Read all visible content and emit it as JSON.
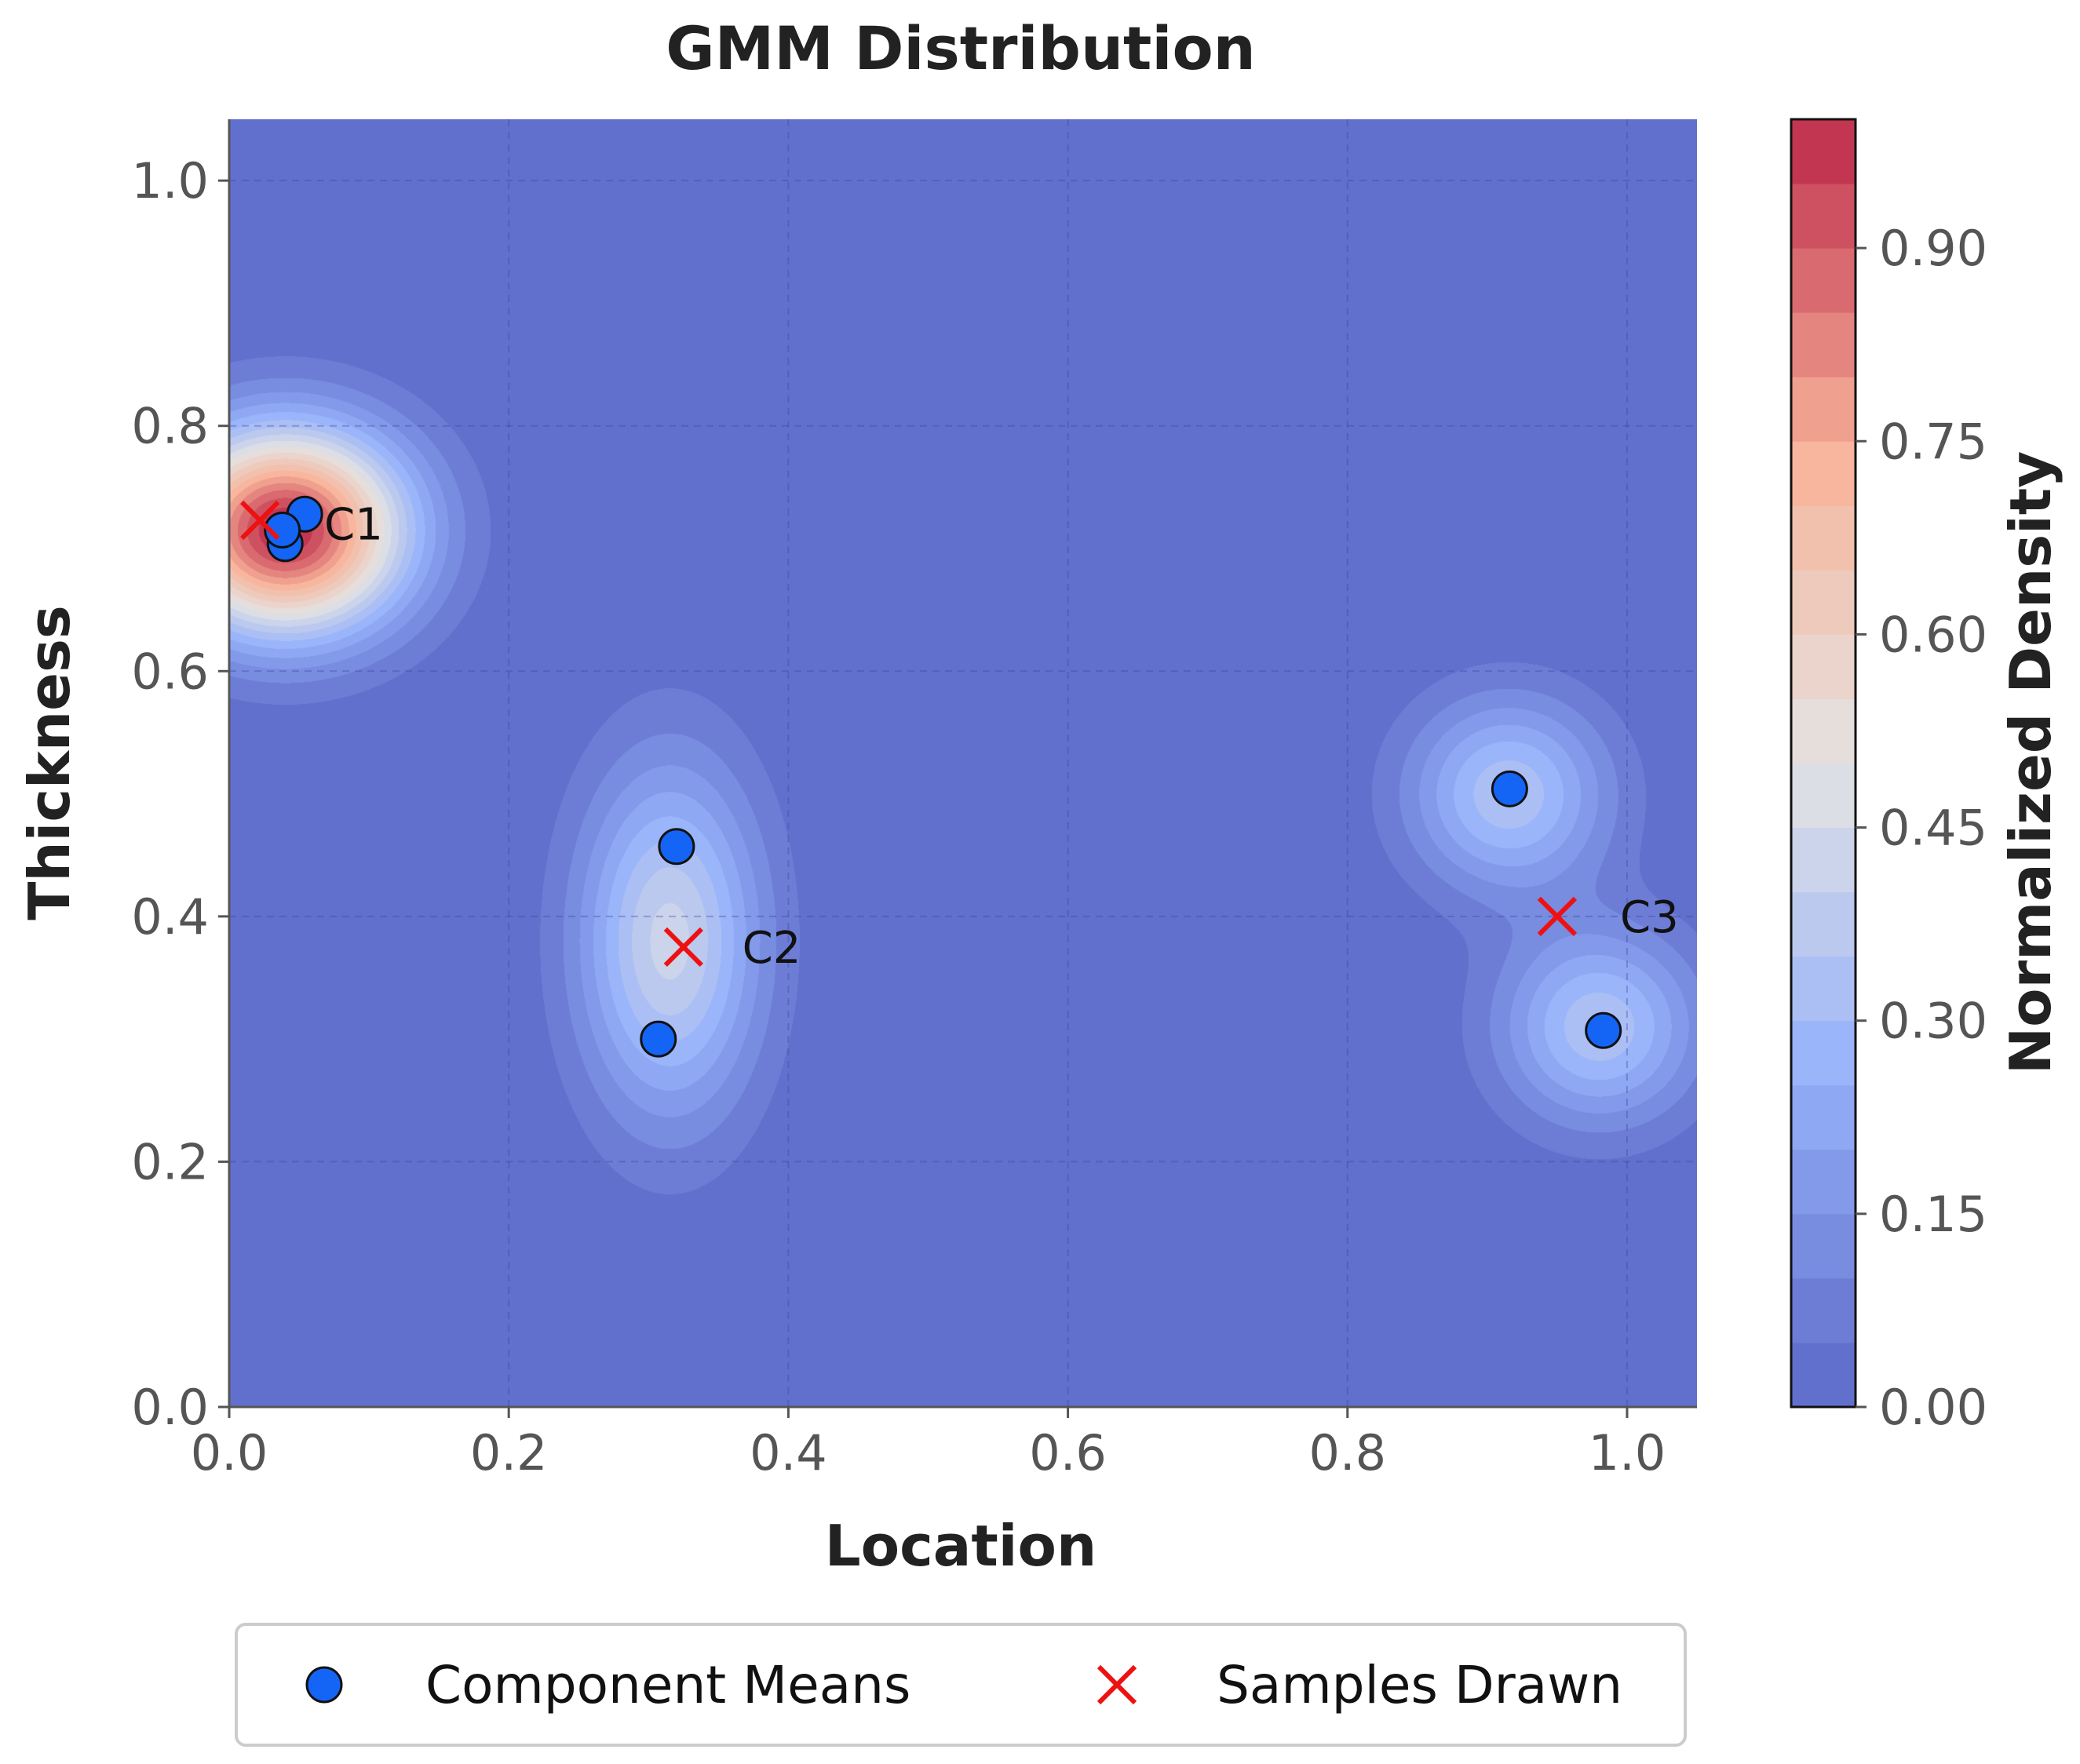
{
  "chart_data": {
    "type": "heatmap",
    "title": "GMM Distribution",
    "xlabel": "Location",
    "ylabel": "Thickness",
    "xlim": [
      0.0,
      1.05
    ],
    "ylim": [
      0.0,
      1.05
    ],
    "xticks": [
      "0.0",
      "0.2",
      "0.4",
      "0.6",
      "0.8",
      "1.0"
    ],
    "yticks": [
      "0.0",
      "0.2",
      "0.4",
      "0.6",
      "0.8",
      "1.0"
    ],
    "grid": true,
    "colorbar": {
      "label": "Normalized Density",
      "range": [
        0.0,
        1.0
      ],
      "ticks": [
        "0.00",
        "0.15",
        "0.30",
        "0.45",
        "0.60",
        "0.75",
        "0.90"
      ],
      "colormap": "coolwarm",
      "levels": 20
    },
    "component_means": [
      {
        "x": 0.04,
        "y": 0.704
      },
      {
        "x": 0.054,
        "y": 0.728
      },
      {
        "x": 0.038,
        "y": 0.715
      },
      {
        "x": 0.32,
        "y": 0.457
      },
      {
        "x": 0.307,
        "y": 0.3
      },
      {
        "x": 0.916,
        "y": 0.504
      },
      {
        "x": 0.983,
        "y": 0.307
      }
    ],
    "samples_drawn": [
      {
        "x": 0.022,
        "y": 0.723
      },
      {
        "x": 0.325,
        "y": 0.375
      },
      {
        "x": 0.95,
        "y": 0.4
      }
    ],
    "annotations": [
      {
        "text": "C1",
        "x": 0.068,
        "y": 0.72
      },
      {
        "text": "C2",
        "x": 0.367,
        "y": 0.375
      },
      {
        "text": "C3",
        "x": 0.995,
        "y": 0.4
      }
    ],
    "density_peaks": [
      {
        "x": 0.04,
        "y": 0.715,
        "peak": 1.0,
        "sx": 0.06,
        "sy": 0.058
      },
      {
        "x": 0.315,
        "y": 0.38,
        "peak": 0.42,
        "sx": 0.045,
        "sy": 0.1
      },
      {
        "x": 0.915,
        "y": 0.5,
        "peak": 0.34,
        "sx": 0.05,
        "sy": 0.055
      },
      {
        "x": 0.98,
        "y": 0.31,
        "peak": 0.34,
        "sx": 0.05,
        "sy": 0.055
      }
    ],
    "legend": {
      "placement": "bottom-center",
      "entries": [
        "Component Means",
        "Samples Drawn"
      ]
    },
    "colors": {
      "mean_fill": "#1465f5",
      "sample_marker": "#ee1111",
      "background_low": "#5c73d3"
    }
  }
}
